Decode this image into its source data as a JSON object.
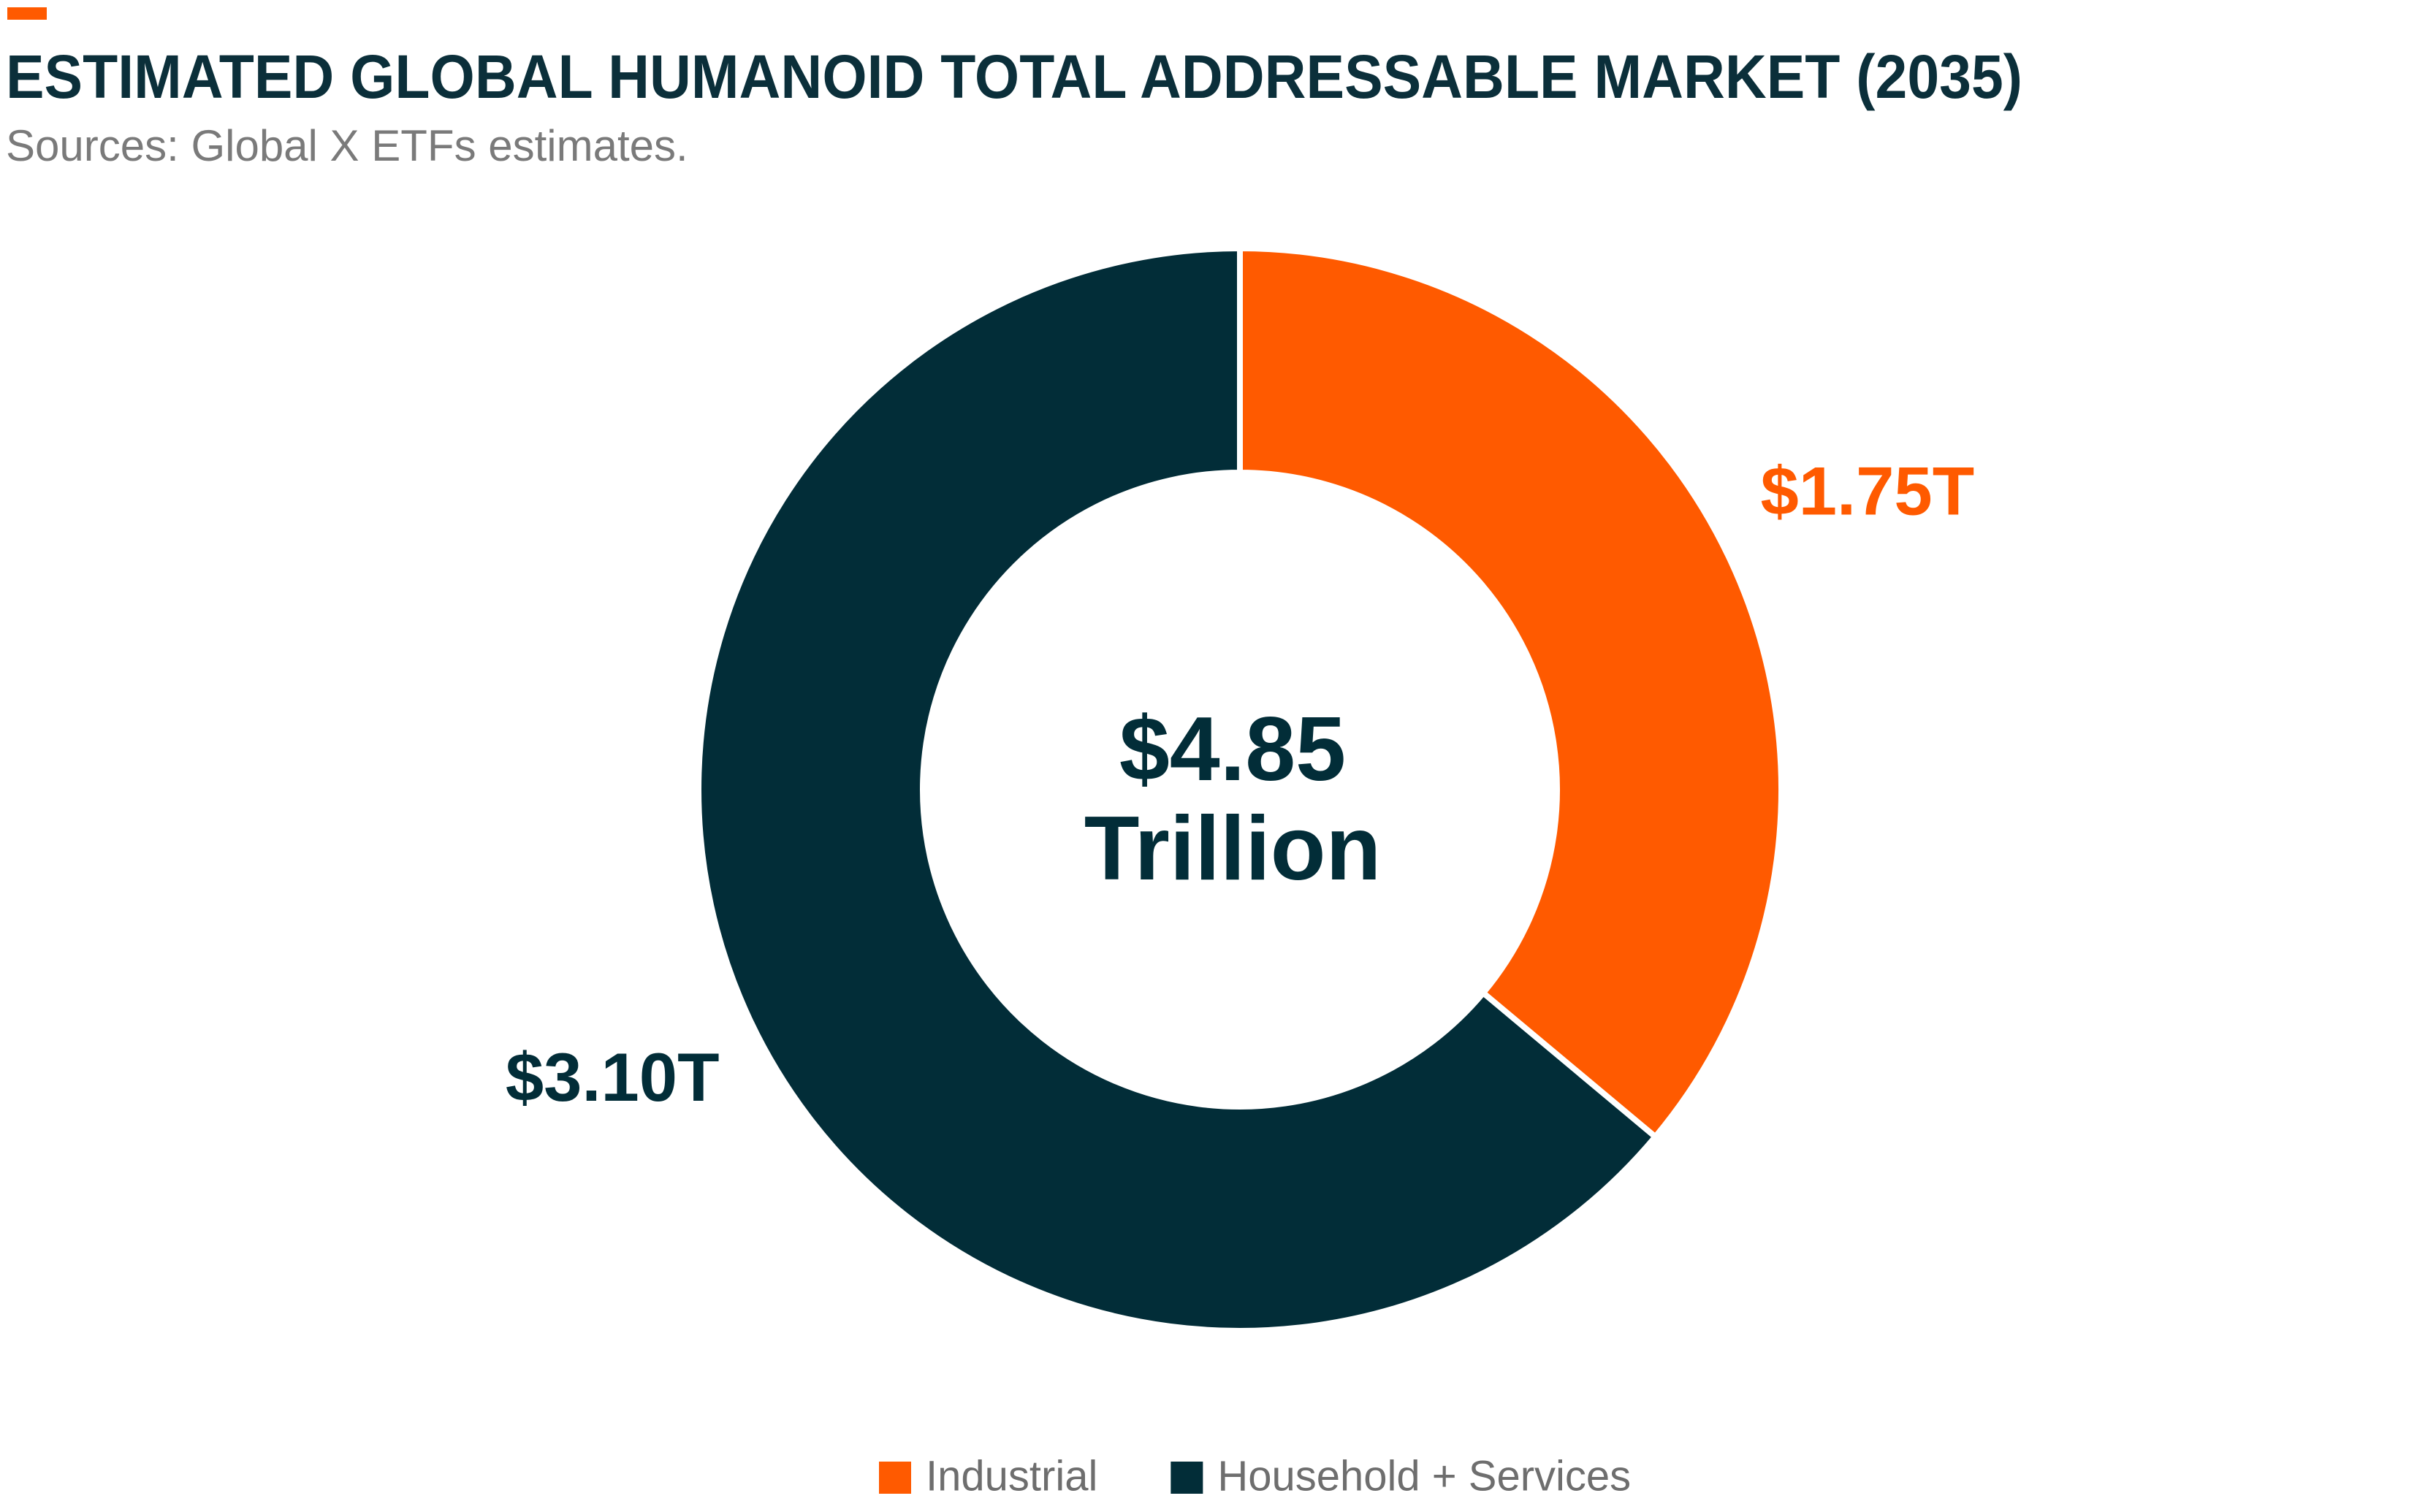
{
  "chart_data": {
    "type": "donut",
    "title": "ESTIMATED GLOBAL HUMANOID TOTAL ADDRESSABLE MARKET (2035)",
    "subtitle": "Sources: Global X ETFs estimates.",
    "categories": [
      "Industrial",
      "Household + Services"
    ],
    "values": [
      1.75,
      3.1
    ],
    "value_labels": [
      "$1.75T",
      "$3.10T"
    ],
    "colors": [
      "#ff5a00",
      "#022d38"
    ],
    "center_label": [
      "$4.85",
      "Trillion"
    ],
    "legend": "bottom"
  }
}
